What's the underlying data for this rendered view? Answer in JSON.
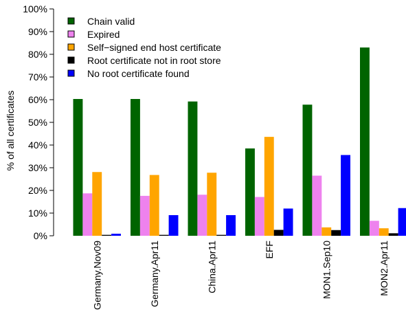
{
  "chart_data": {
    "type": "bar",
    "title": "",
    "xlabel": "",
    "ylabel": "% of all certificates",
    "ylim": [
      0,
      100
    ],
    "y_ticks": [
      0,
      10,
      20,
      30,
      40,
      50,
      60,
      70,
      80,
      90,
      100
    ],
    "y_tick_labels": [
      "0%",
      "10%",
      "20%",
      "30%",
      "40%",
      "50%",
      "60%",
      "70%",
      "80%",
      "90%",
      "100%"
    ],
    "grid": false,
    "legend_position": "top-left",
    "categories": [
      "Germany.Nov09",
      "Germany.Apr11",
      "China.Apr11",
      "EFF",
      "MON1.Sep10",
      "MON2.Apr11"
    ],
    "series": [
      {
        "name": "Chain valid",
        "color": "#006400",
        "values": [
          60.3,
          60.3,
          59.2,
          38.5,
          57.8,
          83.0
        ]
      },
      {
        "name": "Expired",
        "color": "#ee82ee",
        "values": [
          18.7,
          17.6,
          18.1,
          17.1,
          26.5,
          6.6
        ]
      },
      {
        "name": "Self−signed end host certificate",
        "color": "#ffa500",
        "values": [
          28.1,
          26.8,
          27.8,
          43.6,
          3.7,
          3.3
        ]
      },
      {
        "name": "Root certificate not in root store",
        "color": "#000000",
        "values": [
          0.4,
          0.4,
          0.4,
          2.6,
          2.5,
          1.1
        ]
      },
      {
        "name": "No root certificate found",
        "color": "#0000ff",
        "values": [
          0.9,
          9.1,
          9.1,
          12.0,
          35.6,
          12.2
        ]
      }
    ]
  }
}
